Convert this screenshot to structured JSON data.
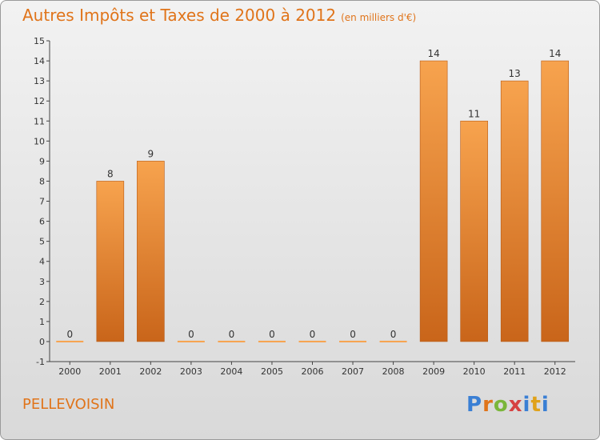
{
  "header": {
    "title": "Autres Impôts et Taxes de 2000 à 2012",
    "unit": "(en milliers d'€)"
  },
  "footer": {
    "city": "PELLEVOISIN",
    "logo": {
      "p": "P",
      "r": "r",
      "o": "o",
      "x": "x",
      "i": "i",
      "t": "t",
      "i2": "i"
    }
  },
  "colors": {
    "bar_top": "#f7a34e",
    "bar_bottom": "#c9651a",
    "title": "#e0741a"
  },
  "chart_data": {
    "type": "bar",
    "categories": [
      "2000",
      "2001",
      "2002",
      "2003",
      "2004",
      "2005",
      "2006",
      "2007",
      "2008",
      "2009",
      "2010",
      "2011",
      "2012"
    ],
    "values": [
      0,
      8,
      9,
      0,
      0,
      0,
      0,
      0,
      0,
      14,
      11,
      13,
      14
    ],
    "ylim": [
      -1,
      15
    ],
    "yticks": [
      "-1",
      "0",
      "1",
      "2",
      "3",
      "4",
      "5",
      "6",
      "7",
      "8",
      "9",
      "10",
      "11",
      "12",
      "13",
      "14",
      "15"
    ],
    "grid": false
  }
}
